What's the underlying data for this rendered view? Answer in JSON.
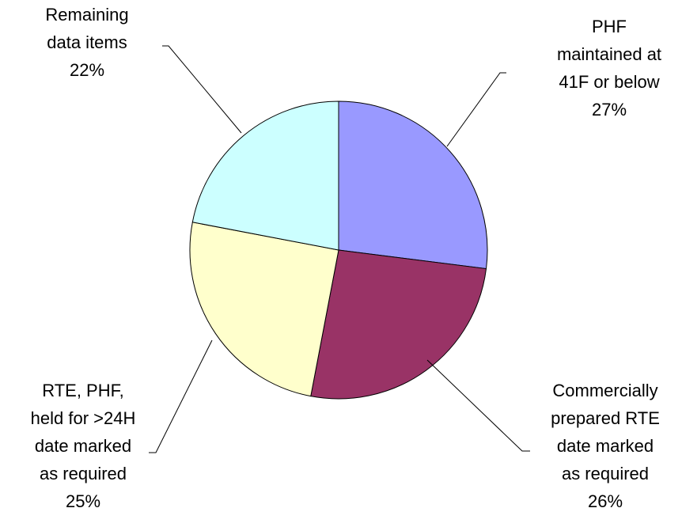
{
  "chart_data": {
    "type": "pie",
    "categories": [
      [
        "PHF",
        "maintained at",
        "41F or below"
      ],
      [
        "Commercially",
        "prepared RTE",
        "date marked",
        "as required"
      ],
      [
        "RTE, PHF,",
        "held for >24H",
        "date marked",
        "as required"
      ],
      [
        "Remaining",
        "data items"
      ]
    ],
    "values": [
      27,
      26,
      25,
      22
    ],
    "value_labels": [
      "27%",
      "26%",
      "25%",
      "22%"
    ],
    "colors": [
      "#9999ff",
      "#993366",
      "#ffffcc",
      "#ccffff"
    ]
  }
}
